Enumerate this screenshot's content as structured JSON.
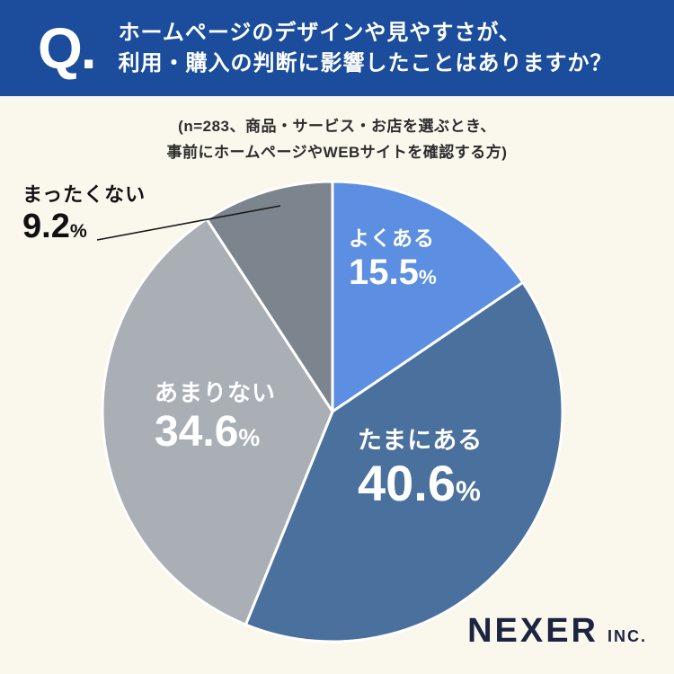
{
  "header": {
    "q_mark": "Q.",
    "title_line1": "ホームページのデザインや見やすさが、",
    "title_line2": "利用・購入の判断に影響したことはありますか？"
  },
  "subtitle": {
    "line1": "(n=283、商品・サービス・お店を選ぶとき、",
    "line2": "事前にホームページやWEBサイトを確認する方)"
  },
  "chart_data": {
    "type": "pie",
    "title": "ホームページのデザインや見やすさが、利用・購入の判断に影響したことはありますか？",
    "n": 283,
    "start_angle_deg_from_top": 0,
    "direction": "clockwise",
    "percent_sign": "%",
    "legend": "none",
    "label_style": "labels inside slices; smallest slice labeled via external callout with leader line",
    "slices": [
      {
        "label": "よくある",
        "value": 15.5,
        "value_text": "15.5",
        "color": "#5C8EE2",
        "text_color": "#ffffff"
      },
      {
        "label": "たまにある",
        "value": 40.6,
        "value_text": "40.6",
        "color": "#4A709D",
        "text_color": "#ffffff"
      },
      {
        "label": "あまりない",
        "value": 34.6,
        "value_text": "34.6",
        "color": "#A9AFB5",
        "text_color": "#ffffff"
      },
      {
        "label": "まったくない",
        "value": 9.2,
        "value_text": "9.2",
        "color": "#7C848D",
        "text_color": "#111111"
      }
    ]
  },
  "footer": {
    "brand": "NEXER",
    "brand_suffix": "INC."
  },
  "colors": {
    "header_bg": "#1B4D9C",
    "page_bg": "#FAF7EC",
    "brand_text": "#1B2440",
    "slice_divider": "#FFFFFF",
    "callout_line": "#1a1a1a"
  }
}
